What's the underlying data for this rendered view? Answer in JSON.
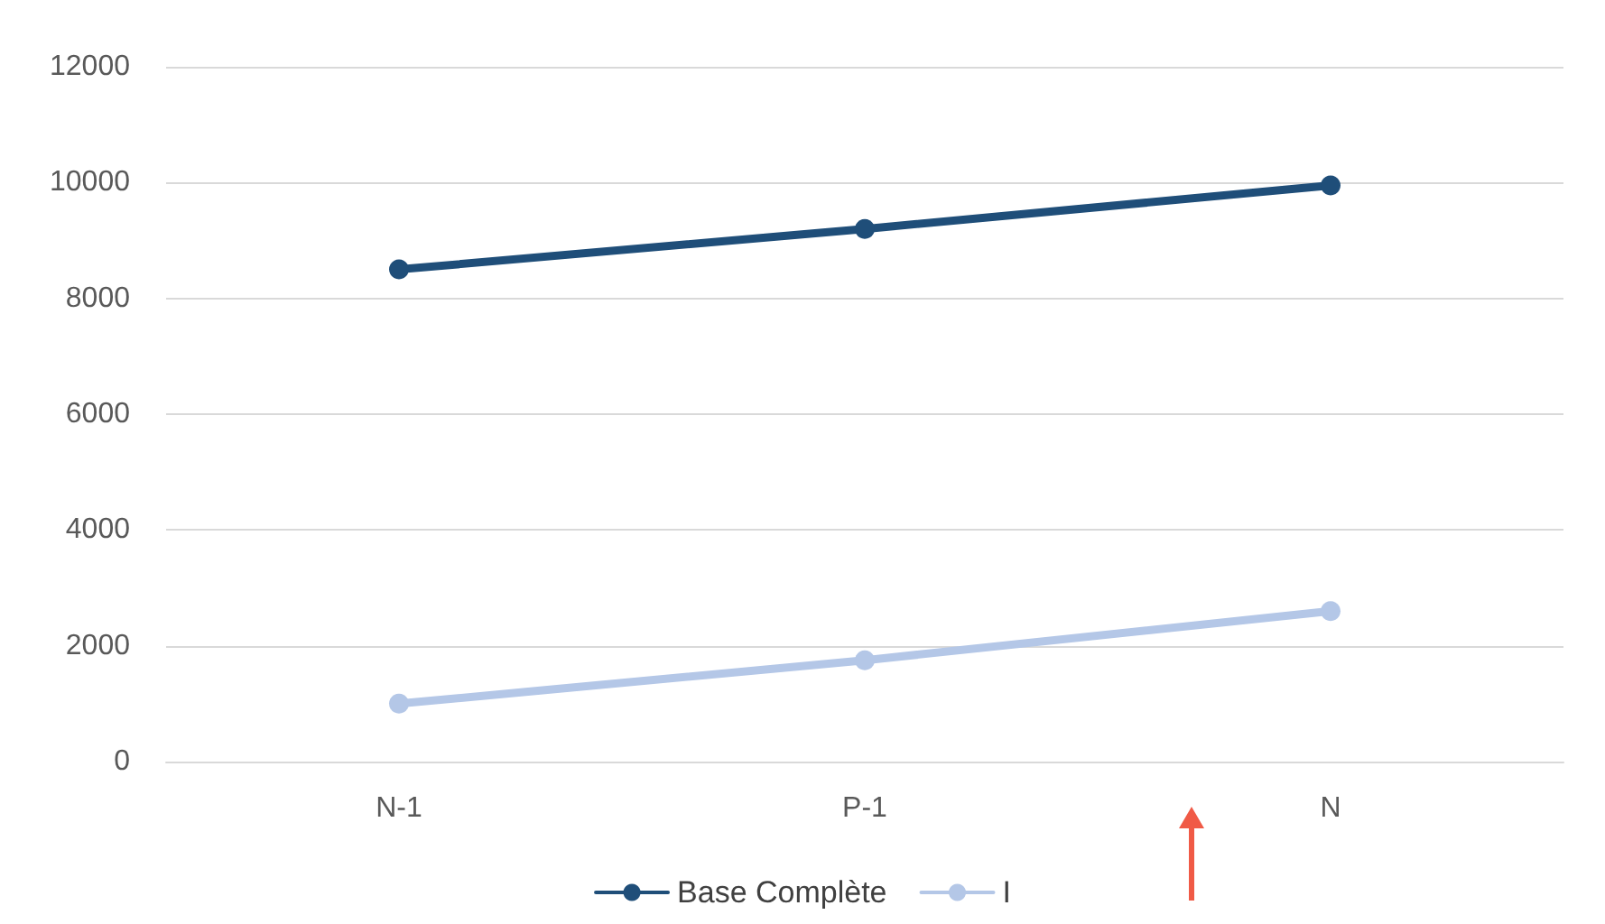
{
  "chart_data": {
    "type": "line",
    "categories": [
      "N-1",
      "P-1",
      "N"
    ],
    "series": [
      {
        "name": "Base Complète",
        "color": "#1f4e79",
        "values": [
          8500,
          9200,
          9950
        ]
      },
      {
        "name": "I",
        "color": "#b4c7e7",
        "values": [
          1000,
          1750,
          2600
        ]
      }
    ],
    "ylim": [
      0,
      12000
    ],
    "yticks": [
      0,
      2000,
      4000,
      6000,
      8000,
      10000,
      12000
    ],
    "grid": "y",
    "legend": "bottom",
    "marker": "circle",
    "line_style": "solid"
  }
}
